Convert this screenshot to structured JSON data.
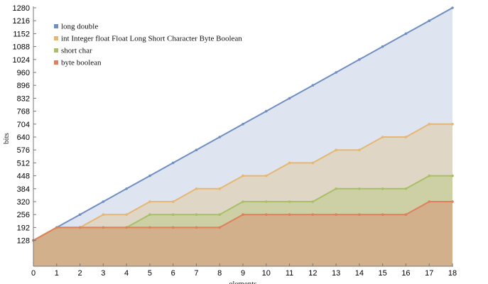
{
  "chart_data": {
    "type": "area",
    "xlabel": "elements",
    "ylabel": "bits",
    "x": [
      0,
      1,
      2,
      3,
      4,
      5,
      6,
      7,
      8,
      9,
      10,
      11,
      12,
      13,
      14,
      15,
      16,
      17,
      18
    ],
    "xlim": [
      0,
      18
    ],
    "ylim": [
      0,
      1280
    ],
    "x_ticks": [
      "0",
      "1",
      "2",
      "3",
      "4",
      "5",
      "6",
      "7",
      "8",
      "9",
      "10",
      "11",
      "12",
      "13",
      "14",
      "15",
      "16",
      "17",
      "18"
    ],
    "y_ticks": [
      "128",
      "192",
      "256",
      "320",
      "384",
      "448",
      "512",
      "576",
      "640",
      "704",
      "768",
      "832",
      "896",
      "960",
      "1024",
      "1088",
      "1152",
      "1216",
      "1280"
    ],
    "legend_position": "top-left",
    "grid": false,
    "series": [
      {
        "name": "long double",
        "color": "#6f8fc2",
        "fill": "#dfe5f0",
        "values": [
          128,
          192,
          256,
          320,
          384,
          448,
          512,
          576,
          640,
          704,
          768,
          832,
          896,
          960,
          1024,
          1088,
          1152,
          1216,
          1280
        ]
      },
      {
        "name": "int Integer float Float Long Short Character Byte Boolean",
        "color": "#e6b673",
        "fill": "#dfd6c6",
        "values": [
          128,
          192,
          192,
          256,
          256,
          320,
          320,
          384,
          384,
          448,
          448,
          512,
          512,
          576,
          576,
          640,
          640,
          704,
          704
        ]
      },
      {
        "name": "short char",
        "color": "#a8bf68",
        "fill": "#cdcfa4",
        "values": [
          128,
          192,
          192,
          192,
          192,
          256,
          256,
          256,
          256,
          320,
          320,
          320,
          320,
          384,
          384,
          384,
          384,
          448,
          448
        ]
      },
      {
        "name": "byte boolean",
        "color": "#e07f5a",
        "fill": "#d2b08b",
        "values": [
          128,
          192,
          192,
          192,
          192,
          192,
          192,
          192,
          192,
          256,
          256,
          256,
          256,
          256,
          256,
          256,
          256,
          320,
          320
        ]
      }
    ]
  }
}
